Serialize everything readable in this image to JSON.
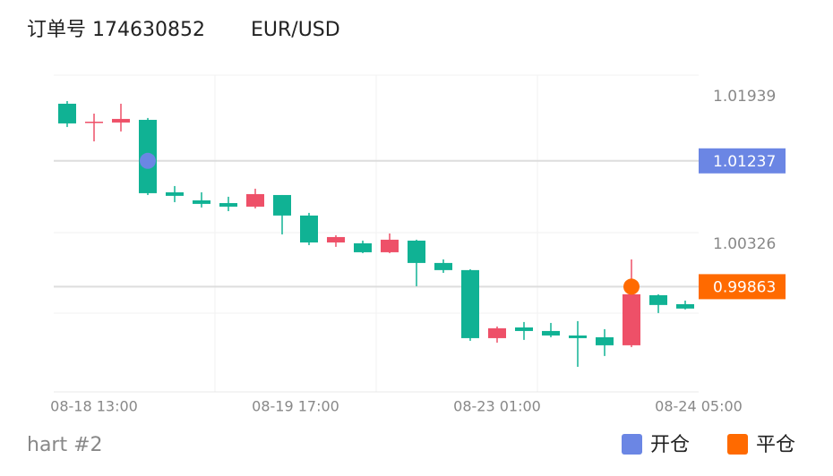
{
  "chart_data": {
    "type": "candlestick",
    "title": "订单号 174630852",
    "symbol": "EUR/USD",
    "footer": "hart #2",
    "ylim": [
      0.98714,
      1.02173
    ],
    "yticks": [
      1.01939,
      1.00326
    ],
    "xtick_labels": [
      "08-18 13:00",
      "08-19 17:00",
      "08-23 01:00",
      "08-24 05:00"
    ],
    "up_color": "#ee5068",
    "down_color": "#10b294",
    "open": [
      1.01861,
      1.01656,
      1.01656,
      1.01685,
      1.00894,
      1.00806,
      1.00776,
      1.00737,
      1.00864,
      1.0064,
      1.00346,
      1.00337,
      1.00239,
      1.00366,
      1.00122,
      1.00044,
      0.99301,
      0.99418,
      0.99379,
      0.9933,
      0.99311,
      0.99223,
      0.9977,
      0.99672
    ],
    "high": [
      1.0189,
      1.01753,
      1.01861,
      1.01705,
      1.00962,
      1.00894,
      1.00845,
      1.00933,
      1.00864,
      1.00669,
      1.00425,
      1.00366,
      1.00444,
      1.00376,
      1.00161,
      1.00053,
      0.99428,
      0.99477,
      0.99467,
      0.99487,
      0.99399,
      1.00161,
      0.9978,
      0.99711
    ],
    "low": [
      1.01607,
      1.0145,
      1.01558,
      1.00864,
      1.00786,
      1.00728,
      1.00688,
      1.00718,
      1.00434,
      1.00317,
      1.00298,
      1.00229,
      1.00229,
      0.99868,
      1.00014,
      0.99272,
      0.99252,
      0.99282,
      0.99311,
      0.98988,
      0.99106,
      0.99203,
      0.99575,
      0.99614
    ],
    "close": [
      1.01646,
      1.01665,
      1.01695,
      1.00884,
      1.00855,
      1.00767,
      1.00737,
      1.00874,
      1.0064,
      1.00346,
      1.00405,
      1.00239,
      1.00376,
      1.00122,
      1.00044,
      0.99301,
      0.99409,
      0.99379,
      0.9933,
      0.99301,
      0.99223,
      0.9978,
      0.99663,
      0.99624
    ],
    "markers": [
      {
        "name": "开仓",
        "color": "#6b86e4",
        "index": 3,
        "value": 1.01237
      },
      {
        "name": "平仓",
        "color": "#ff6a00",
        "index": 21,
        "value": 0.99863
      }
    ]
  }
}
